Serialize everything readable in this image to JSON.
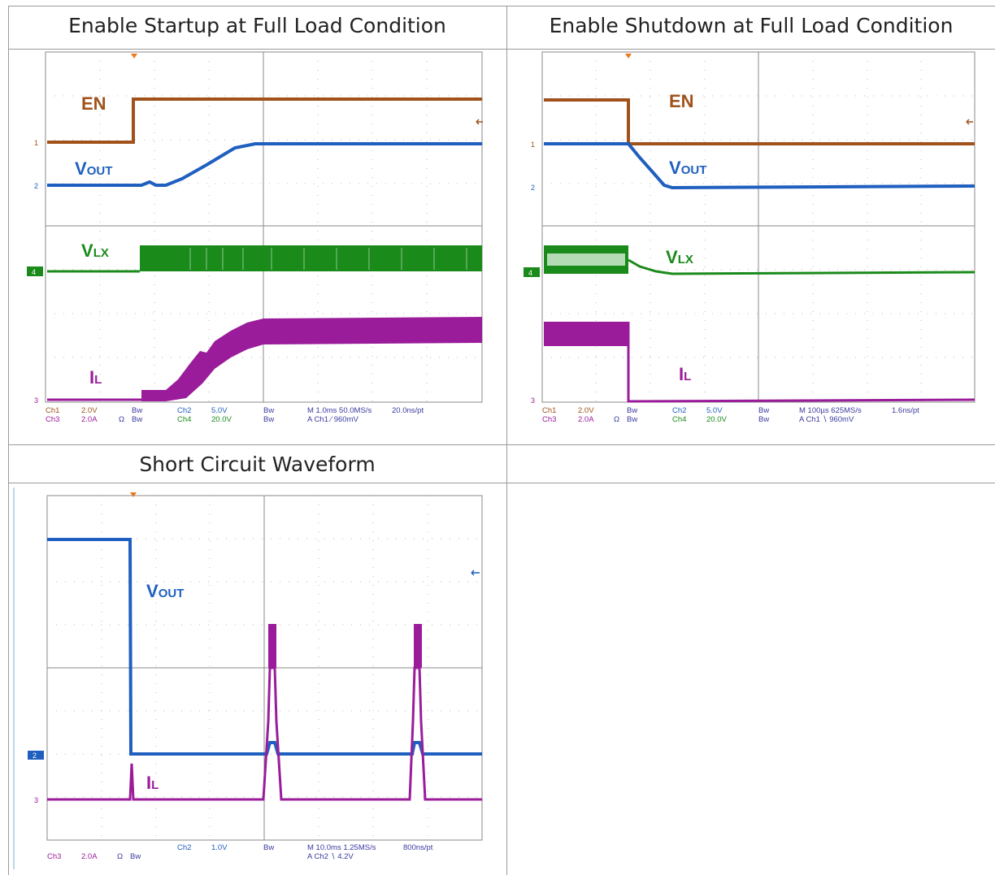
{
  "cells": {
    "startup": {
      "title": "Enable Startup at Full Load Condition",
      "labels": {
        "en": "EN",
        "vout_main": "V",
        "vout_sub": "OUT",
        "vlx_main": "V",
        "vlx_sub": "LX",
        "il_main": "I",
        "il_sub": "L"
      },
      "ch_markers": {
        "m1": "1",
        "m2": "2",
        "m4": "4",
        "m3": "3"
      },
      "readout": {
        "ch1": "Ch1",
        "ch1_scale": "2.0V",
        "ch3": "Ch3",
        "ch3_scale": "2.0A",
        "ohm": "Ω",
        "bw": "Bw",
        "ch2": "Ch2",
        "ch2_scale": "5.0V",
        "ch4": "Ch4",
        "ch4_scale": "20.0V",
        "timebase": "M 1.0ms 50.0MS/s",
        "res": "20.0ns/pt",
        "trigger": "A  Ch1  ∕  960mV"
      }
    },
    "shutdown": {
      "title": "Enable Shutdown at Full Load Condition",
      "labels": {
        "en": "EN",
        "vout_main": "V",
        "vout_sub": "OUT",
        "vlx_main": "V",
        "vlx_sub": "LX",
        "il_main": "I",
        "il_sub": "L"
      },
      "ch_markers": {
        "m1": "1",
        "m2": "2",
        "m4": "4",
        "m3": "3"
      },
      "readout": {
        "ch1": "Ch1",
        "ch1_scale": "2.0V",
        "ch3": "Ch3",
        "ch3_scale": "2.0A",
        "ohm": "Ω",
        "bw": "Bw",
        "ch2": "Ch2",
        "ch2_scale": "5.0V",
        "ch4": "Ch4",
        "ch4_scale": "20.0V",
        "timebase": "M 100µs 625MS/s",
        "res": "1.6ns/pt",
        "trigger": "A  Ch1  ∖  960mV"
      }
    },
    "short": {
      "title": "Short Circuit Waveform",
      "labels": {
        "vout_main": "V",
        "vout_sub": "OUT",
        "il_main": "I",
        "il_sub": "L"
      },
      "ch_markers": {
        "m2": "2",
        "m3": "3"
      },
      "readout": {
        "ch3": "Ch3",
        "ch3_scale": "2.0A",
        "ohm": "Ω",
        "bw": "Bw",
        "ch2": "Ch2",
        "ch2_scale": "1.0V",
        "timebase": "M 10.0ms 1.25MS/s",
        "res": "800ns/pt",
        "trigger": "A  Ch2  ∖  4.2V"
      }
    }
  },
  "colors": {
    "en": "#a0521a",
    "vout": "#1f5fbf",
    "vlx": "#1a8a1a",
    "il": "#9a1c9a",
    "readout": "#3a3aa0",
    "grid": "#8a8a8a",
    "trigger_marker": "#e87a1e"
  }
}
